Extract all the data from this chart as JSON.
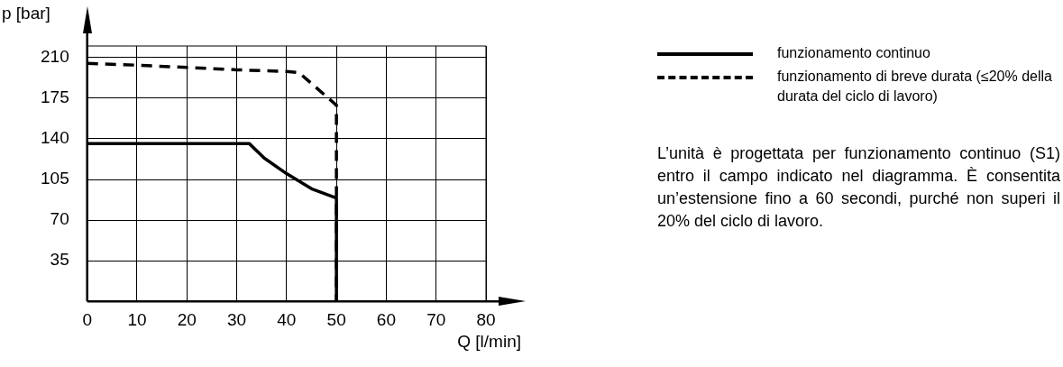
{
  "chart_data": {
    "type": "line",
    "xlabel": "Q [l/min]",
    "ylabel": "p [bar]",
    "series": [
      {
        "name": "funzionamento continuo",
        "color": "#000000",
        "line_style": "solid",
        "x": [
          0,
          32.5,
          35.5,
          40,
          45,
          50,
          50
        ],
        "values": [
          136,
          136,
          123.5,
          110,
          97,
          89,
          0
        ]
      },
      {
        "name": "funzionamento di breve durata (≤20% della durata del ciclo di lavoro)",
        "color": "#000000",
        "line_style": "dashed",
        "x": [
          0,
          10,
          20,
          30,
          40,
          42.5,
          50,
          50
        ],
        "values": [
          205,
          203.5,
          201.5,
          199.5,
          198,
          197,
          169,
          0
        ]
      }
    ],
    "xlim": [
      0,
      80
    ],
    "xticks": [
      0,
      10,
      20,
      30,
      40,
      50,
      60,
      70,
      80
    ],
    "ylim": [
      0,
      220
    ],
    "yticks": [
      35,
      70,
      105,
      140,
      175,
      210
    ],
    "grid": true,
    "legend": "right",
    "marker": "none",
    "annotations": [
      "L’unità è progettata per funzionamento continuo (S1) entro il campo indicato nel diagramma. È consentita un’estensione fino a 60 secondi, purché non superi il 20% del ciclo di lavoro."
    ]
  }
}
